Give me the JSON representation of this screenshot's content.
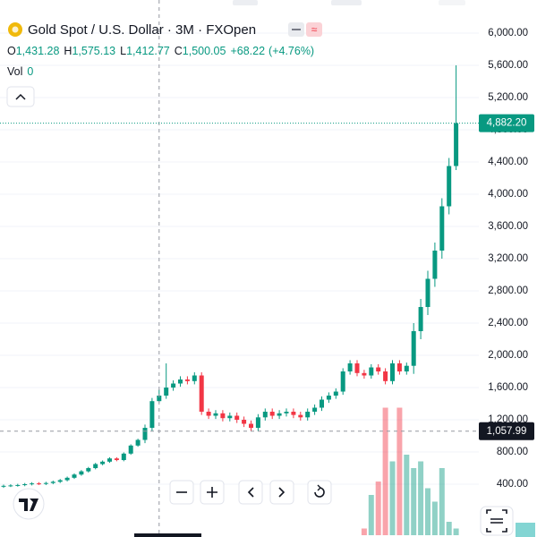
{
  "header": {
    "symbol": "Gold Spot / U.S. Dollar · 3M · FXOpen",
    "ohlc": [
      {
        "label": "O",
        "value": "1,431.28"
      },
      {
        "label": "H",
        "value": "1,575.13"
      },
      {
        "label": "L",
        "value": "1,412.77"
      },
      {
        "label": "C",
        "value": "1,500.05"
      }
    ],
    "change": "+68.22",
    "change_pct": "(+4.76%)",
    "vol_label": "Vol",
    "vol_value": "0"
  },
  "chart_data": {
    "type": "candlestick",
    "up_color": "#089981",
    "down_color": "#f23645",
    "grid": true,
    "ylim": [
      -233,
      6411
    ],
    "yticks": [
      {
        "value": 400,
        "label": "400.00"
      },
      {
        "value": 800,
        "label": "800.00"
      },
      {
        "value": 1200,
        "label": "1,200.00"
      },
      {
        "value": 1600,
        "label": "1,600.00"
      },
      {
        "value": 2000,
        "label": "2,000.00"
      },
      {
        "value": 2400,
        "label": "2,400.00"
      },
      {
        "value": 2800,
        "label": "2,800.00"
      },
      {
        "value": 3200,
        "label": "3,200.00"
      },
      {
        "value": 3600,
        "label": "3,600.00"
      },
      {
        "value": 4000,
        "label": "4,000.00"
      },
      {
        "value": 4400,
        "label": "4,400.00"
      },
      {
        "value": 4800,
        "label": "4,800.00"
      },
      {
        "value": 5200,
        "label": "5,200.00"
      },
      {
        "value": 5600,
        "label": "5,600.00"
      },
      {
        "value": 6000,
        "label": "6,000.00"
      }
    ],
    "series": {
      "open": [
        370,
        380,
        385,
        390,
        400,
        410,
        405,
        415,
        430,
        450,
        480,
        520,
        560,
        600,
        650,
        680,
        720,
        700,
        780,
        880,
        950,
        1100,
        1431.28,
        1500.05,
        1600,
        1650,
        1700,
        1680,
        1750,
        1300,
        1250,
        1280,
        1220,
        1250,
        1200,
        1150,
        1100,
        1230,
        1300,
        1250,
        1280,
        1300,
        1260,
        1230,
        1300,
        1350,
        1450,
        1500,
        1550,
        1800,
        1900,
        1780,
        1750,
        1850,
        1800,
        1680,
        1900,
        1800,
        1870,
        2300,
        2600,
        2950,
        3300,
        3850,
        4350
      ],
      "high": [
        395,
        400,
        405,
        415,
        425,
        425,
        430,
        445,
        465,
        495,
        535,
        575,
        615,
        665,
        695,
        735,
        735,
        795,
        895,
        965,
        1140,
        1471,
        1575.13,
        1900,
        1690,
        1740,
        1740,
        1790,
        1790,
        1340,
        1320,
        1320,
        1290,
        1290,
        1240,
        1190,
        1270,
        1340,
        1340,
        1320,
        1340,
        1340,
        1300,
        1340,
        1390,
        1490,
        1540,
        1590,
        1840,
        1940,
        1940,
        1820,
        1890,
        1890,
        1840,
        1940,
        1940,
        1910,
        2400,
        2700,
        3050,
        3400,
        3950,
        4450,
        5600
      ],
      "low": [
        355,
        365,
        370,
        375,
        385,
        390,
        390,
        400,
        415,
        435,
        465,
        505,
        545,
        585,
        635,
        665,
        685,
        685,
        765,
        865,
        910,
        1060,
        1412.77,
        1460,
        1560,
        1610,
        1640,
        1640,
        1260,
        1210,
        1210,
        1180,
        1180,
        1160,
        1110,
        1060,
        1060,
        1190,
        1210,
        1210,
        1240,
        1220,
        1190,
        1190,
        1260,
        1310,
        1410,
        1460,
        1510,
        1760,
        1740,
        1710,
        1710,
        1760,
        1640,
        1640,
        1760,
        1760,
        1770,
        2200,
        2500,
        2850,
        3200,
        3750,
        4300
      ],
      "close": [
        380,
        385,
        390,
        400,
        410,
        405,
        415,
        430,
        450,
        480,
        520,
        560,
        600,
        650,
        680,
        720,
        700,
        780,
        880,
        950,
        1100,
        1431.28,
        1500.05,
        1600,
        1650,
        1700,
        1680,
        1750,
        1300,
        1250,
        1280,
        1220,
        1250,
        1200,
        1150,
        1100,
        1230,
        1300,
        1250,
        1280,
        1300,
        1260,
        1230,
        1300,
        1350,
        1450,
        1500,
        1550,
        1800,
        1900,
        1780,
        1750,
        1850,
        1800,
        1680,
        1900,
        1800,
        1870,
        2300,
        2600,
        2950,
        3300,
        3850,
        4350,
        4882.2
      ]
    },
    "volume": {
      "vlim": [
        0,
        100
      ],
      "values": [
        0,
        0,
        0,
        0,
        0,
        0,
        0,
        0,
        0,
        0,
        0,
        0,
        0,
        0,
        0,
        0,
        0,
        0,
        0,
        0,
        0,
        0,
        0,
        0,
        0,
        0,
        0,
        0,
        0,
        0,
        0,
        0,
        0,
        0,
        0,
        0,
        0,
        0,
        0,
        0,
        0,
        0,
        0,
        0,
        0,
        0,
        0,
        0,
        0,
        0,
        0,
        5,
        30,
        40,
        95,
        55,
        95,
        60,
        50,
        55,
        35,
        25,
        50,
        10,
        5
      ]
    },
    "last_price": {
      "value": 4882.2,
      "label": "4,882.20"
    },
    "crosshair_price": {
      "value": 1057.99,
      "label": "1,057.99"
    },
    "crosshair_index": 22
  }
}
